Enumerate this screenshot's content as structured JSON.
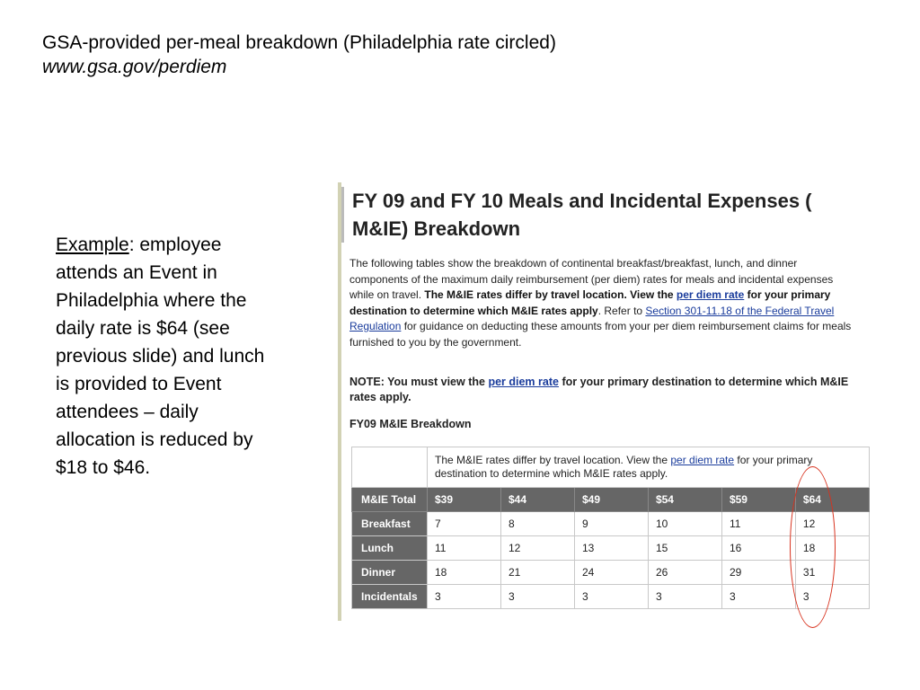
{
  "slide": {
    "title": "GSA-provided per-meal breakdown (Philadelphia rate circled)",
    "subtitle": "www.gsa.gov/perdiem"
  },
  "example": {
    "label": "Example",
    "text": ": employee attends an Event in Philadelphia where the daily rate is $64 (see previous slide) and lunch is provided to Event attendees – daily allocation is reduced by $18 to $46."
  },
  "screenshot": {
    "heading": "FY 09 and FY 10 Meals and Incidental Expenses ( M&IE) Breakdown",
    "intro": {
      "p1": "The following tables show the breakdown of continental breakfast/breakfast, lunch, and dinner components of the maximum daily reimbursement (per diem) rates for meals and incidental expenses while on travel.",
      "p2_bold_a": "The M&IE rates differ by travel location.  View the",
      "link1": "per diem rate",
      "p2_bold_b": "for your primary destination to determine which M&IE rates apply",
      "p3": ".  Refer to",
      "link2": "Section 301-11.18 of the Federal Travel Regulation",
      "p4": "for guidance on deducting these amounts from your per diem reimbursement claims for meals furnished to you by the government."
    },
    "note": {
      "a": "NOTE: You must view the",
      "link": "per diem rate",
      "b": "for your primary destination to determine which M&IE rates apply."
    },
    "fy_label": "FY09 M&IE Breakdown",
    "table": {
      "info_a": "The M&IE rates differ by travel location.  View the",
      "info_link": "per diem rate",
      "info_b": "for your primary destination to determine which M&IE rates apply.",
      "rows": [
        {
          "label": "M&IE Total",
          "cells": [
            "$39",
            "$44",
            "$49",
            "$54",
            "$59",
            "$64"
          ]
        },
        {
          "label": "Breakfast",
          "cells": [
            "7",
            "8",
            "9",
            "10",
            "11",
            "12"
          ]
        },
        {
          "label": "Lunch",
          "cells": [
            "11",
            "12",
            "13",
            "15",
            "16",
            "18"
          ]
        },
        {
          "label": "Dinner",
          "cells": [
            "18",
            "21",
            "24",
            "26",
            "29",
            "31"
          ]
        },
        {
          "label": "Incidentals",
          "cells": [
            "3",
            "3",
            "3",
            "3",
            "3",
            "3"
          ]
        }
      ]
    },
    "highlight_color": "#d8321e"
  }
}
